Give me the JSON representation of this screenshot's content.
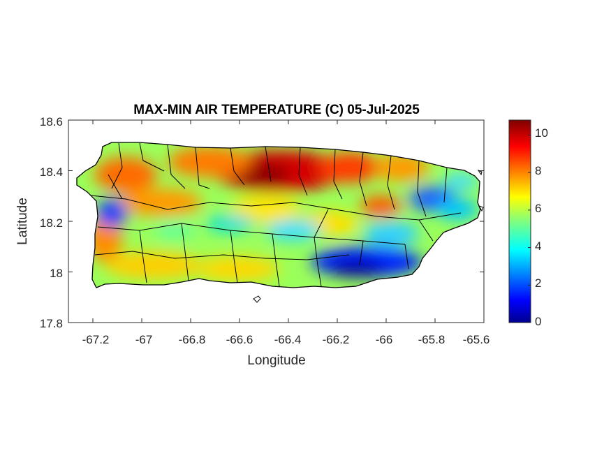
{
  "map": {
    "title": "MAX-MIN AIR TEMPERATURE (C) 05-Jul-2025",
    "xlabel": "Longitude",
    "ylabel": "Latitude",
    "region": "Puerto Rico",
    "x_ticks": [
      "-67.2",
      "-67",
      "-66.8",
      "-66.6",
      "-66.4",
      "-66.2",
      "-66",
      "-65.8",
      "-65.6"
    ],
    "y_ticks": [
      "18.6",
      "18.4",
      "18.2",
      "18",
      "17.8"
    ],
    "x_range": [
      -67.3,
      -65.6
    ],
    "y_range": [
      17.8,
      18.6
    ],
    "colorbar": {
      "ticks": [
        "10",
        "8",
        "6",
        "4",
        "2",
        "0"
      ],
      "range": [
        0,
        10.8
      ],
      "colormap": "jet"
    },
    "colors": {
      "low": "#00008f",
      "mid": "#7fff7f",
      "high": "#800000"
    }
  }
}
